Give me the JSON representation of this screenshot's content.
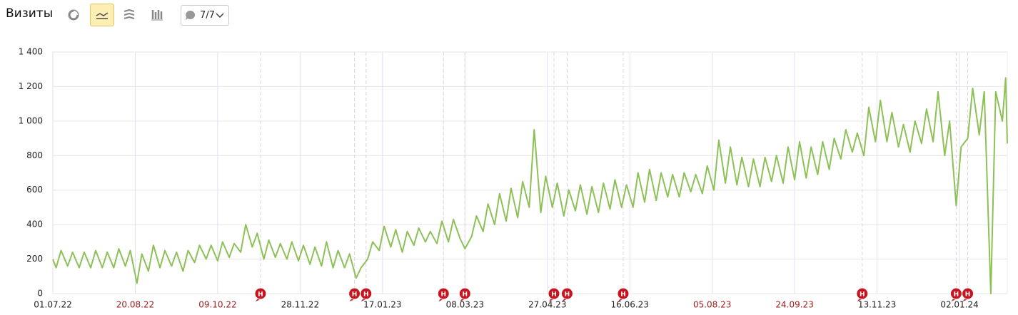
{
  "toolbar": {
    "title": "Визиты",
    "comments": "7/7"
  },
  "chart_data": {
    "type": "line",
    "color": "#8dc158",
    "grid": true,
    "x": [
      "01.07.22",
      "03.07.22",
      "06.07.22",
      "10.07.22",
      "13.07.22",
      "17.07.22",
      "20.07.22",
      "24.07.22",
      "27.07.22",
      "31.07.22",
      "03.08.22",
      "07.08.22",
      "10.08.22",
      "14.08.22",
      "17.08.22",
      "21.08.22",
      "24.08.22",
      "28.08.22",
      "31.08.22",
      "04.09.22",
      "07.09.22",
      "11.09.22",
      "14.09.22",
      "18.09.22",
      "21.09.22",
      "25.09.22",
      "28.09.22",
      "02.10.22",
      "05.10.22",
      "09.10.22",
      "12.10.22",
      "16.10.22",
      "19.10.22",
      "23.10.22",
      "26.10.22",
      "30.10.22",
      "02.11.22",
      "06.11.22",
      "09.11.22",
      "13.11.22",
      "16.11.22",
      "20.11.22",
      "23.11.22",
      "27.11.22",
      "30.11.22",
      "04.12.22",
      "07.12.22",
      "11.12.22",
      "14.12.22",
      "18.12.22",
      "21.12.22",
      "25.12.22",
      "28.12.22",
      "01.01.23",
      "04.01.23",
      "08.01.23",
      "11.01.23",
      "15.01.23",
      "18.01.23",
      "22.01.23",
      "25.01.23",
      "29.01.23",
      "01.02.23",
      "05.02.23",
      "08.02.23",
      "12.02.23",
      "15.02.23",
      "19.02.23",
      "22.02.23",
      "26.02.23",
      "01.03.23",
      "05.03.23",
      "08.03.23",
      "12.03.23",
      "15.03.23",
      "19.03.23",
      "22.03.23",
      "26.03.23",
      "29.03.23",
      "02.04.23",
      "05.04.23",
      "09.04.23",
      "12.04.23",
      "16.04.23",
      "19.04.23",
      "23.04.23",
      "26.04.23",
      "30.04.23",
      "03.05.23",
      "07.05.23",
      "10.05.23",
      "14.05.23",
      "17.05.23",
      "21.05.23",
      "24.05.23",
      "28.05.23",
      "31.05.23",
      "04.06.23",
      "07.06.23",
      "11.06.23",
      "14.06.23",
      "18.06.23",
      "21.06.23",
      "25.06.23",
      "28.06.23",
      "02.07.23",
      "05.07.23",
      "09.07.23",
      "12.07.23",
      "16.07.23",
      "19.07.23",
      "23.07.23",
      "26.07.23",
      "30.07.23",
      "02.08.23",
      "06.08.23",
      "09.08.23",
      "13.08.23",
      "16.08.23",
      "20.08.23",
      "23.08.23",
      "27.08.23",
      "30.08.23",
      "03.09.23",
      "06.09.23",
      "10.09.23",
      "13.09.23",
      "17.09.23",
      "20.09.23",
      "24.09.23",
      "27.09.23",
      "01.10.23",
      "04.10.23",
      "08.10.23",
      "11.10.23",
      "15.10.23",
      "18.10.23",
      "22.10.23",
      "25.10.23",
      "29.10.23",
      "01.11.23",
      "05.11.23",
      "08.11.23",
      "12.11.23",
      "15.11.23",
      "19.11.23",
      "22.11.23",
      "26.11.23",
      "29.11.23",
      "03.12.23",
      "06.12.23",
      "10.12.23",
      "13.12.23",
      "17.12.23",
      "20.12.23",
      "24.12.23",
      "27.12.23",
      "31.12.23",
      "03.01.24",
      "07.01.24",
      "10.01.24",
      "14.01.24",
      "17.01.24",
      "21.01.24",
      "24.01.24",
      "28.01.24",
      "30.01.24",
      "31.01.24"
    ],
    "values": [
      200,
      150,
      250,
      160,
      240,
      150,
      240,
      150,
      250,
      150,
      240,
      150,
      260,
      160,
      250,
      60,
      230,
      130,
      280,
      150,
      250,
      160,
      240,
      130,
      250,
      180,
      280,
      200,
      280,
      190,
      300,
      210,
      290,
      240,
      400,
      270,
      350,
      200,
      310,
      210,
      290,
      200,
      300,
      190,
      280,
      170,
      270,
      160,
      300,
      150,
      250,
      150,
      230,
      90,
      150,
      200,
      300,
      250,
      390,
      270,
      370,
      240,
      360,
      280,
      380,
      300,
      360,
      290,
      420,
      300,
      430,
      320,
      260,
      330,
      450,
      360,
      520,
      400,
      580,
      420,
      610,
      440,
      650,
      500,
      950,
      470,
      680,
      500,
      640,
      450,
      600,
      480,
      630,
      460,
      620,
      470,
      640,
      490,
      660,
      500,
      630,
      500,
      700,
      530,
      720,
      540,
      700,
      560,
      690,
      560,
      700,
      590,
      690,
      580,
      740,
      600,
      890,
      640,
      850,
      630,
      790,
      620,
      780,
      620,
      790,
      650,
      800,
      640,
      850,
      660,
      880,
      670,
      850,
      690,
      880,
      720,
      900,
      780,
      950,
      820,
      930,
      800,
      1080,
      880,
      1120,
      880,
      1050,
      850,
      980,
      820,
      1000,
      870,
      1070,
      880,
      1170,
      800,
      1000,
      510,
      850,
      900,
      1190,
      920,
      1170,
      0,
      1170,
      1000,
      1250,
      870
    ],
    "xlim": [
      "01.07.22",
      "31.01.24"
    ],
    "xticks": [
      "01.07.22",
      "20.08.22",
      "09.10.22",
      "28.11.22",
      "17.01.23",
      "08.03.23",
      "27.04.23",
      "16.06.23",
      "05.08.23",
      "24.09.23",
      "13.11.23",
      "02.01.24"
    ],
    "ylim": [
      0,
      1400
    ],
    "yticks": [
      0,
      200,
      400,
      600,
      800,
      {
        "value": 1000,
        "label": "1 000"
      },
      {
        "value": 1200,
        "label": "1 200"
      },
      {
        "value": 1400,
        "label": "1 400"
      }
    ],
    "annotations": [
      {
        "x": "04.11.22",
        "label": "Н"
      },
      {
        "x": "31.12.22",
        "label": "Н"
      },
      {
        "x": "07.01.23",
        "label": "Н"
      },
      {
        "x": "23.02.23",
        "label": "Н"
      },
      {
        "x": "08.03.23",
        "label": "Н"
      },
      {
        "x": "01.05.23",
        "label": "Н"
      },
      {
        "x": "09.05.23",
        "label": "Н"
      },
      {
        "x": "12.06.23",
        "label": "Н"
      },
      {
        "x": "04.11.23",
        "label": "Н"
      },
      {
        "x": "31.12.23",
        "label": "Н"
      },
      {
        "x": "07.01.24",
        "label": "Н"
      }
    ]
  }
}
